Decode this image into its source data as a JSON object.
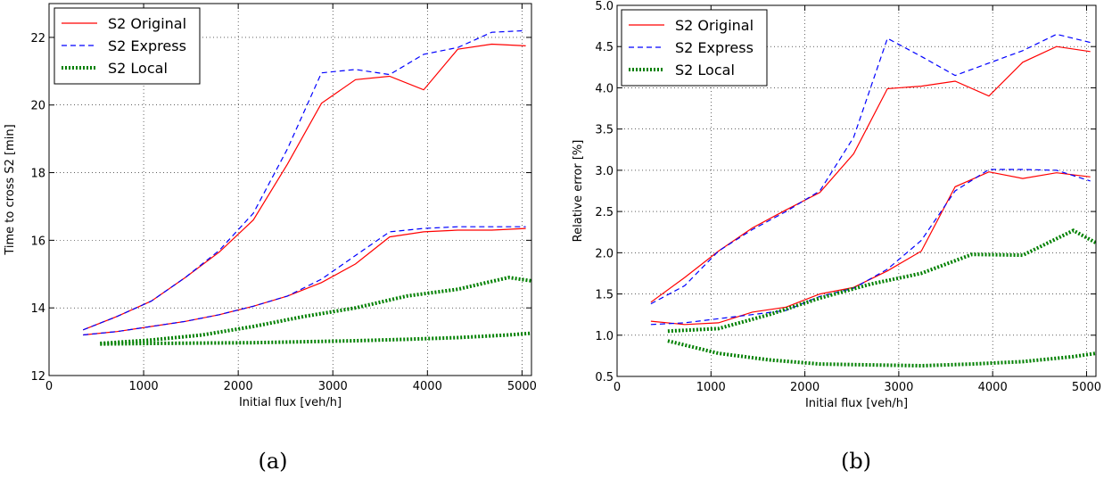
{
  "chart_data": [
    {
      "type": "line",
      "panel_label": "(a)",
      "xlabel": "Initial flux [veh/h]",
      "ylabel": "Time to cross S2 [min]",
      "xlim": [
        0,
        5100
      ],
      "ylim": [
        12,
        23
      ],
      "xticks": [
        0,
        1000,
        2000,
        3000,
        4000,
        5000
      ],
      "yticks": [
        12,
        14,
        16,
        18,
        20,
        22
      ],
      "grid": true,
      "legend_position": "top-left",
      "series": [
        {
          "name": "S2 Original",
          "color": "#ff0000",
          "style": "solid",
          "x": [
            360,
            720,
            1080,
            1440,
            1800,
            2160,
            2520,
            2880,
            3240,
            3600,
            3960,
            4320,
            4680,
            5040
          ],
          "y": [
            13.35,
            13.75,
            14.2,
            14.9,
            15.65,
            16.6,
            18.25,
            20.05,
            20.75,
            20.85,
            20.45,
            21.65,
            21.8,
            21.75
          ]
        },
        {
          "name": "S2 Original",
          "color": "#ff0000",
          "style": "solid",
          "x": [
            360,
            720,
            1080,
            1440,
            1800,
            2160,
            2520,
            2880,
            3240,
            3600,
            3960,
            4320,
            4680,
            5040
          ],
          "y": [
            13.2,
            13.3,
            13.45,
            13.6,
            13.8,
            14.05,
            14.35,
            14.75,
            15.3,
            16.1,
            16.25,
            16.3,
            16.3,
            16.35
          ]
        },
        {
          "name": "S2 Express",
          "color": "#0000ff",
          "style": "dashed",
          "x": [
            360,
            720,
            1080,
            1440,
            1800,
            2160,
            2520,
            2880,
            3240,
            3600,
            3960,
            4320,
            4680,
            5040
          ],
          "y": [
            13.35,
            13.75,
            14.2,
            14.9,
            15.7,
            16.8,
            18.7,
            20.95,
            21.05,
            20.9,
            21.5,
            21.7,
            22.15,
            22.2
          ]
        },
        {
          "name": "S2 Express",
          "color": "#0000ff",
          "style": "dashed",
          "x": [
            360,
            720,
            1080,
            1440,
            1800,
            2160,
            2520,
            2880,
            3240,
            3600,
            3960,
            4320,
            4680,
            5040
          ],
          "y": [
            13.2,
            13.3,
            13.45,
            13.6,
            13.8,
            14.05,
            14.35,
            14.85,
            15.55,
            16.25,
            16.35,
            16.4,
            16.4,
            16.4
          ]
        },
        {
          "name": "S2 Local",
          "color": "#008000",
          "style": "dotted",
          "x": [
            540,
            1080,
            1620,
            2160,
            2700,
            3240,
            3780,
            4320,
            4860,
            5100
          ],
          "y": [
            12.95,
            13.05,
            13.2,
            13.45,
            13.75,
            14.0,
            14.35,
            14.55,
            14.9,
            14.8
          ]
        },
        {
          "name": "S2 Local",
          "color": "#008000",
          "style": "dotted",
          "x": [
            540,
            1080,
            1620,
            2160,
            2700,
            3240,
            3780,
            4320,
            4860,
            5100
          ],
          "y": [
            12.93,
            12.95,
            12.96,
            12.97,
            13.0,
            13.03,
            13.07,
            13.12,
            13.2,
            13.25
          ]
        }
      ]
    },
    {
      "type": "line",
      "panel_label": "(b)",
      "xlabel": "Initial flux [veh/h]",
      "ylabel": "Relative error [%]",
      "xlim": [
        0,
        5100
      ],
      "ylim": [
        0.5,
        5.0
      ],
      "xticks": [
        0,
        1000,
        2000,
        3000,
        4000,
        5000
      ],
      "yticks": [
        0.5,
        1.0,
        1.5,
        2.0,
        2.5,
        3.0,
        3.5,
        4.0,
        4.5,
        5.0
      ],
      "grid": true,
      "legend_position": "top-left",
      "series": [
        {
          "name": "S2 Original",
          "color": "#ff0000",
          "style": "solid",
          "x": [
            360,
            720,
            1080,
            1440,
            1800,
            2160,
            2520,
            2880,
            3240,
            3600,
            3960,
            4320,
            4680,
            5040
          ],
          "y": [
            1.4,
            1.7,
            2.02,
            2.3,
            2.52,
            2.73,
            3.2,
            3.99,
            4.02,
            4.08,
            3.9,
            4.31,
            4.5,
            4.44
          ]
        },
        {
          "name": "S2 Original",
          "color": "#ff0000",
          "style": "solid",
          "x": [
            360,
            720,
            1080,
            1440,
            1800,
            2160,
            2520,
            2880,
            3240,
            3600,
            3960,
            4320,
            4680,
            5040
          ],
          "y": [
            1.17,
            1.13,
            1.15,
            1.28,
            1.34,
            1.5,
            1.58,
            1.78,
            2.02,
            2.8,
            2.98,
            2.9,
            2.97,
            2.92
          ]
        },
        {
          "name": "S2 Express",
          "color": "#0000ff",
          "style": "dashed",
          "x": [
            360,
            720,
            1080,
            1440,
            1800,
            2160,
            2520,
            2880,
            3240,
            3600,
            3960,
            4320,
            4680,
            5040
          ],
          "y": [
            1.38,
            1.6,
            2.02,
            2.28,
            2.5,
            2.75,
            3.4,
            4.6,
            4.38,
            4.15,
            4.3,
            4.45,
            4.65,
            4.55
          ]
        },
        {
          "name": "S2 Express",
          "color": "#0000ff",
          "style": "dashed",
          "x": [
            360,
            720,
            1080,
            1440,
            1800,
            2160,
            2520,
            2880,
            3240,
            3600,
            3960,
            4320,
            4680,
            5040
          ],
          "y": [
            1.13,
            1.15,
            1.2,
            1.25,
            1.3,
            1.47,
            1.57,
            1.8,
            2.15,
            2.75,
            3.01,
            3.01,
            3.0,
            2.87
          ]
        },
        {
          "name": "S2 Local",
          "color": "#008000",
          "style": "dotted",
          "x": [
            540,
            1080,
            1620,
            2160,
            2700,
            3240,
            3780,
            4320,
            4860,
            5100
          ],
          "y": [
            1.05,
            1.08,
            1.25,
            1.45,
            1.62,
            1.75,
            1.98,
            1.97,
            2.27,
            2.12
          ]
        },
        {
          "name": "S2 Local",
          "color": "#008000",
          "style": "dotted",
          "x": [
            540,
            1080,
            1620,
            2160,
            2700,
            3240,
            3780,
            4320,
            4860,
            5100
          ],
          "y": [
            0.93,
            0.78,
            0.7,
            0.65,
            0.64,
            0.63,
            0.65,
            0.68,
            0.74,
            0.78
          ]
        }
      ]
    }
  ],
  "legend": [
    {
      "label": "S2 Original",
      "color": "#ff0000",
      "style": "solid"
    },
    {
      "label": "S2 Express",
      "color": "#0000ff",
      "style": "dashed"
    },
    {
      "label": "S2 Local",
      "color": "#008000",
      "style": "dotted"
    }
  ]
}
